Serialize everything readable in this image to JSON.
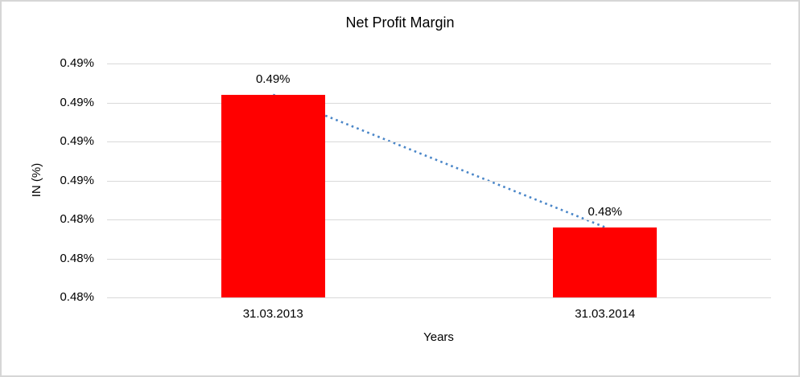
{
  "chart_data": {
    "type": "bar",
    "title": "Net Profit Margin",
    "xlabel": "Years",
    "ylabel": "IN (%)",
    "categories": [
      "31.03.2013",
      "31.03.2014"
    ],
    "values": [
      0.4904,
      0.4836
    ],
    "bar_labels": [
      "0.49%",
      "0.48%"
    ],
    "y_tick_labels_top_to_bottom": [
      "0.49%",
      "0.49%",
      "0.49%",
      "0.49%",
      "0.48%",
      "0.48%",
      "0.48%"
    ],
    "ylim": [
      0.48,
      0.492
    ],
    "grid": true,
    "legend": "none",
    "bar_color": "#FF0000",
    "gridline_color": "#D9D9D9",
    "trendline": {
      "style": "dotted",
      "color": "#4A86C8",
      "from_label": "0.49%",
      "to_label": "0.48%"
    }
  },
  "frame": {
    "border_color": "#D6D6D6",
    "background_color": "#FFFFFF"
  }
}
